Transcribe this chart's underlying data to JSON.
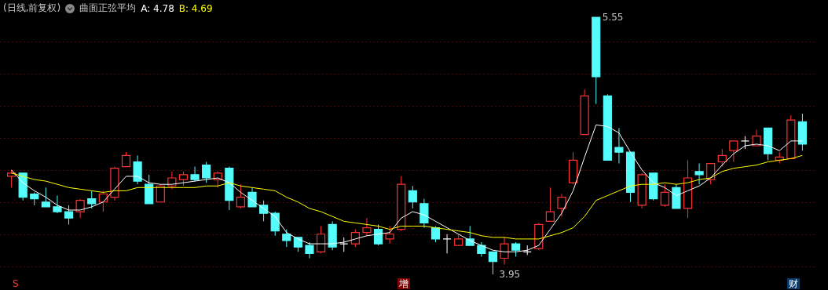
{
  "chart_data": {
    "type": "candlestick",
    "title": "(日线,前复权)",
    "legend_title": "曲面正弦平均",
    "grid": "y",
    "categories": [
      null,
      null,
      null,
      null,
      null,
      null,
      null,
      null,
      null,
      null,
      null,
      null,
      null,
      null,
      null,
      null,
      null,
      null,
      null,
      null,
      null,
      null,
      null,
      null,
      null,
      null,
      null,
      null,
      null,
      null,
      null,
      null,
      null,
      null,
      null,
      null,
      null,
      null,
      null,
      null,
      null,
      null,
      null,
      null,
      null,
      null,
      null,
      null,
      null,
      null,
      null,
      null,
      null,
      null,
      null,
      null,
      null,
      null,
      null,
      null,
      null,
      null,
      null,
      null,
      null,
      null,
      null,
      null,
      null,
      null
    ],
    "yticks": [
      {
        "value": 4.0,
        "label": null
      },
      {
        "value": 4.2,
        "label": null
      },
      {
        "value": 4.4,
        "label": null
      },
      {
        "value": 4.6,
        "label": null
      },
      {
        "value": 4.8,
        "label": null
      },
      {
        "value": 5.0,
        "label": null
      },
      {
        "value": 5.2,
        "label": null
      },
      {
        "value": 5.4,
        "label": null
      }
    ],
    "ohlc": [
      [
        4.56,
        4.6,
        4.49,
        4.58
      ],
      [
        4.58,
        4.58,
        4.41,
        4.43
      ],
      [
        4.45,
        4.46,
        4.38,
        4.42
      ],
      [
        4.4,
        4.49,
        4.37,
        4.37
      ],
      [
        4.37,
        4.44,
        4.33,
        4.34
      ],
      [
        4.34,
        4.38,
        4.26,
        4.3
      ],
      [
        4.34,
        4.42,
        4.3,
        4.41
      ],
      [
        4.42,
        4.47,
        4.36,
        4.39
      ],
      [
        4.4,
        4.47,
        4.34,
        4.45
      ],
      [
        4.43,
        4.62,
        4.41,
        4.61
      ],
      [
        4.62,
        4.71,
        4.62,
        4.69
      ],
      [
        4.65,
        4.69,
        4.51,
        4.53
      ],
      [
        4.51,
        4.57,
        4.39,
        4.39
      ],
      [
        4.4,
        4.51,
        4.4,
        4.5
      ],
      [
        4.5,
        4.59,
        4.48,
        4.55
      ],
      [
        4.54,
        4.59,
        4.5,
        4.57
      ],
      [
        4.57,
        4.62,
        4.53,
        4.54
      ],
      [
        4.63,
        4.65,
        4.52,
        4.55
      ],
      [
        4.54,
        4.59,
        4.49,
        4.58
      ],
      [
        4.61,
        4.62,
        4.35,
        4.41
      ],
      [
        4.37,
        4.51,
        4.36,
        4.43
      ],
      [
        4.46,
        4.49,
        4.37,
        4.37
      ],
      [
        4.38,
        4.41,
        4.28,
        4.33
      ],
      [
        4.33,
        4.34,
        4.19,
        4.22
      ],
      [
        4.2,
        4.23,
        4.12,
        4.16
      ],
      [
        4.18,
        4.18,
        4.09,
        4.12
      ],
      [
        4.13,
        4.15,
        4.05,
        4.08
      ],
      [
        4.09,
        4.25,
        4.08,
        4.2
      ],
      [
        4.26,
        4.28,
        4.1,
        4.12
      ],
      [
        4.14,
        4.18,
        4.09,
        4.14
      ],
      [
        4.14,
        4.23,
        4.12,
        4.21
      ],
      [
        4.21,
        4.3,
        4.19,
        4.24
      ],
      [
        4.23,
        4.26,
        4.13,
        4.14
      ],
      [
        4.17,
        4.25,
        4.14,
        4.2
      ],
      [
        4.23,
        4.56,
        4.22,
        4.51
      ],
      [
        4.47,
        4.5,
        4.36,
        4.4
      ],
      [
        4.39,
        4.42,
        4.24,
        4.27
      ],
      [
        4.24,
        4.25,
        4.15,
        4.17
      ],
      [
        4.17,
        4.2,
        4.08,
        4.17
      ],
      [
        4.13,
        4.2,
        4.13,
        4.17
      ],
      [
        4.17,
        4.25,
        4.13,
        4.13
      ],
      [
        4.13,
        4.15,
        4.06,
        4.08
      ],
      [
        4.09,
        4.09,
        3.95,
        4.03
      ],
      [
        4.05,
        4.18,
        4.01,
        4.14
      ],
      [
        4.14,
        4.15,
        4.06,
        4.1
      ],
      [
        4.09,
        4.13,
        4.07,
        4.09
      ],
      [
        4.11,
        4.27,
        4.1,
        4.26
      ],
      [
        4.28,
        4.49,
        4.28,
        4.34
      ],
      [
        4.36,
        4.45,
        4.31,
        4.43
      ],
      [
        4.52,
        4.71,
        4.51,
        4.66
      ],
      [
        4.82,
        5.1,
        4.82,
        5.06
      ],
      [
        5.55,
        5.55,
        5.01,
        5.18
      ],
      [
        5.06,
        5.07,
        4.66,
        4.66
      ],
      [
        4.74,
        4.86,
        4.64,
        4.71
      ],
      [
        4.71,
        4.71,
        4.4,
        4.46
      ],
      [
        4.38,
        4.58,
        4.36,
        4.57
      ],
      [
        4.58,
        4.58,
        4.41,
        4.42
      ],
      [
        4.38,
        4.51,
        4.37,
        4.46
      ],
      [
        4.49,
        4.51,
        4.36,
        4.36
      ],
      [
        4.36,
        4.66,
        4.3,
        4.55
      ],
      [
        4.59,
        4.64,
        4.51,
        4.57
      ],
      [
        4.54,
        4.64,
        4.51,
        4.64
      ],
      [
        4.65,
        4.73,
        4.62,
        4.69
      ],
      [
        4.72,
        4.78,
        4.65,
        4.78
      ],
      [
        4.78,
        4.81,
        4.73,
        4.78
      ],
      [
        4.75,
        4.85,
        4.75,
        4.81
      ],
      [
        4.86,
        4.86,
        4.66,
        4.7
      ],
      [
        4.66,
        4.71,
        4.64,
        4.68
      ],
      [
        4.67,
        4.94,
        4.67,
        4.91
      ],
      [
        4.9,
        4.95,
        4.72,
        4.76
      ]
    ],
    "colors": [
      "#ff3232",
      "#54fcfc",
      "#54fcfc",
      "#54fcfc",
      "#54fcfc",
      "#54fcfc",
      "#ff3232",
      "#54fcfc",
      "#ff3232",
      "#ff3232",
      "#ff3232",
      "#54fcfc",
      "#54fcfc",
      "#ff3232",
      "#ff3232",
      "#ff3232",
      "#54fcfc",
      "#54fcfc",
      "#ff3232",
      "#54fcfc",
      "#ff3232",
      "#54fcfc",
      "#54fcfc",
      "#54fcfc",
      "#54fcfc",
      "#54fcfc",
      "#54fcfc",
      "#ff3232",
      "#54fcfc",
      "#ffffff",
      "#ff3232",
      "#ff3232",
      "#54fcfc",
      "#ff3232",
      "#ff3232",
      "#54fcfc",
      "#54fcfc",
      "#54fcfc",
      "#ffffff",
      "#ff3232",
      "#54fcfc",
      "#54fcfc",
      "#54fcfc",
      "#ff3232",
      "#54fcfc",
      "#ffffff",
      "#ff3232",
      "#ff3232",
      "#ff3232",
      "#ff3232",
      "#ff3232",
      "#54fcfc",
      "#54fcfc",
      "#54fcfc",
      "#54fcfc",
      "#ff3232",
      "#54fcfc",
      "#ff3232",
      "#54fcfc",
      "#ff3232",
      "#54fcfc",
      "#ff3232",
      "#ff3232",
      "#ff3232",
      "#ffffff",
      "#ff3232",
      "#54fcfc",
      "#ff3232",
      "#ff3232",
      "#54fcfc"
    ],
    "series": [
      {
        "name": "A: 4.78",
        "type": "line",
        "color": "#ffffff",
        "values": [
          4.6,
          4.52,
          4.47,
          4.43,
          4.38,
          4.35,
          4.35,
          4.37,
          4.4,
          4.48,
          4.56,
          4.56,
          4.52,
          4.51,
          4.51,
          4.52,
          4.53,
          4.54,
          4.55,
          4.52,
          4.46,
          4.41,
          4.36,
          4.31,
          4.21,
          4.17,
          4.14,
          4.14,
          4.14,
          4.15,
          4.17,
          4.19,
          4.2,
          4.21,
          4.3,
          4.34,
          4.32,
          4.28,
          4.24,
          4.2,
          4.16,
          4.13,
          4.1,
          4.09,
          4.09,
          4.1,
          4.13,
          4.23,
          4.33,
          4.47,
          4.68,
          4.88,
          4.87,
          4.83,
          4.71,
          4.6,
          4.52,
          4.49,
          4.44,
          4.47,
          4.5,
          4.55,
          4.63,
          4.7,
          4.75,
          4.76,
          4.75,
          4.72,
          4.78,
          4.78
        ]
      },
      {
        "name": "B: 4.69",
        "type": "line",
        "color": "#ffff00",
        "values": [
          4.58,
          4.56,
          4.54,
          4.53,
          4.51,
          4.49,
          4.48,
          4.47,
          4.46,
          4.47,
          4.47,
          4.49,
          4.49,
          4.49,
          4.49,
          4.49,
          4.49,
          4.5,
          4.5,
          4.52,
          4.5,
          4.49,
          4.48,
          4.47,
          4.43,
          4.4,
          4.36,
          4.34,
          4.31,
          4.28,
          4.27,
          4.26,
          4.25,
          4.23,
          4.25,
          4.25,
          4.25,
          4.24,
          4.23,
          4.22,
          4.21,
          4.19,
          4.18,
          4.18,
          4.17,
          4.17,
          4.17,
          4.19,
          4.21,
          4.24,
          4.31,
          4.41,
          4.44,
          4.47,
          4.5,
          4.51,
          4.51,
          4.52,
          4.51,
          4.52,
          4.54,
          4.55,
          4.59,
          4.61,
          4.62,
          4.63,
          4.65,
          4.66,
          4.67,
          4.69
        ]
      }
    ],
    "annotations": [
      "5.55",
      "3.95",
      "S",
      "增",
      "财"
    ]
  }
}
